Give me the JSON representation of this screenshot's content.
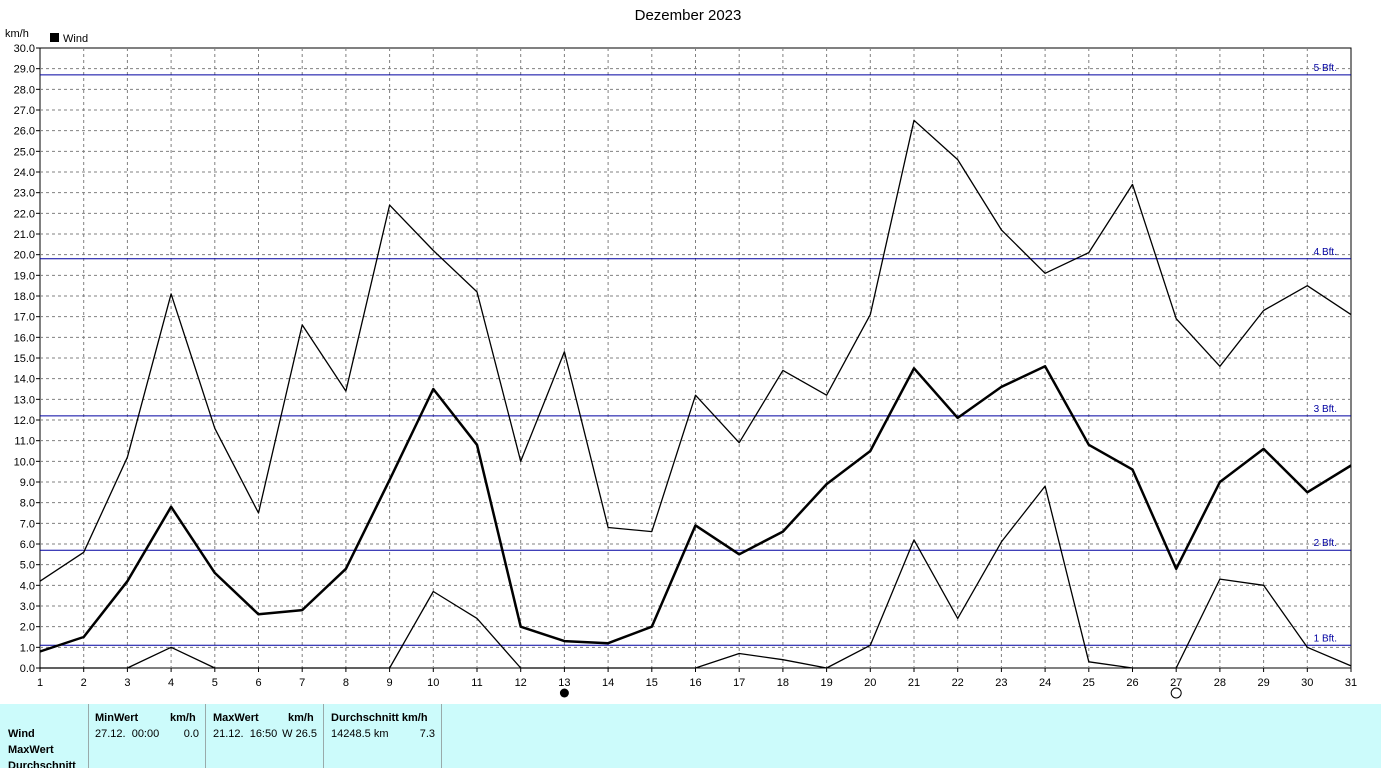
{
  "chart_data": {
    "type": "line",
    "title": "Dezember 2023",
    "ylabel": "km/h",
    "legend": {
      "label": "Wind",
      "placement": "top-left"
    },
    "ylim": [
      0,
      30
    ],
    "xlim": [
      1,
      31
    ],
    "grid": true,
    "y_ticks": [
      "0.0",
      "1.0",
      "2.0",
      "3.0",
      "4.0",
      "5.0",
      "6.0",
      "7.0",
      "8.0",
      "9.0",
      "10.0",
      "11.0",
      "12.0",
      "13.0",
      "14.0",
      "15.0",
      "16.0",
      "17.0",
      "18.0",
      "19.0",
      "20.0",
      "21.0",
      "22.0",
      "23.0",
      "24.0",
      "25.0",
      "26.0",
      "27.0",
      "28.0",
      "29.0",
      "30.0"
    ],
    "x_ticks": [
      "1",
      "2",
      "3",
      "4",
      "5",
      "6",
      "7",
      "8",
      "9",
      "10",
      "11",
      "12",
      "13",
      "14",
      "15",
      "16",
      "17",
      "18",
      "19",
      "20",
      "21",
      "22",
      "23",
      "24",
      "25",
      "26",
      "27",
      "28",
      "29",
      "30",
      "31"
    ],
    "x": [
      1,
      2,
      3,
      4,
      5,
      6,
      7,
      8,
      9,
      10,
      11,
      12,
      13,
      14,
      15,
      16,
      17,
      18,
      19,
      20,
      21,
      22,
      23,
      24,
      25,
      26,
      27,
      28,
      29,
      30,
      31
    ],
    "series": [
      {
        "values": [
          4.2,
          5.6,
          10.2,
          18.1,
          11.6,
          7.5,
          16.6,
          13.4,
          22.4,
          20.2,
          18.2,
          10.0,
          15.3,
          6.8,
          6.6,
          13.2,
          10.9,
          14.4,
          13.2,
          17.1,
          26.5,
          24.6,
          21.2,
          19.1,
          20.1,
          23.4,
          16.9,
          14.6,
          17.3,
          18.5,
          17.1
        ],
        "weight": "thin"
      },
      {
        "values": [
          0.8,
          1.5,
          4.2,
          7.8,
          4.6,
          2.6,
          2.8,
          4.8,
          9.1,
          13.5,
          10.8,
          2.0,
          1.3,
          1.2,
          2.0,
          6.9,
          5.5,
          6.6,
          8.9,
          10.5,
          14.5,
          12.1,
          13.6,
          14.6,
          10.8,
          9.6,
          4.8,
          9.0,
          10.6,
          8.5,
          9.8
        ],
        "weight": "bold"
      },
      {
        "values": [
          0.0,
          0.0,
          0.0,
          1.0,
          0.0,
          0.0,
          0.0,
          0.0,
          0.0,
          3.7,
          2.4,
          0.0,
          0.0,
          0.0,
          0.0,
          0.0,
          0.7,
          0.4,
          0.0,
          1.1,
          6.2,
          2.4,
          6.1,
          8.8,
          0.3,
          0.0,
          0.0,
          4.3,
          4.0,
          1.0,
          0.1
        ],
        "weight": "thin"
      }
    ],
    "reference_lines": [
      {
        "label": "1 Bft.",
        "value": 1.1
      },
      {
        "label": "2 Bft.",
        "value": 5.7
      },
      {
        "label": "3 Bft.",
        "value": 12.2
      },
      {
        "label": "4 Bft.",
        "value": 19.8
      },
      {
        "label": "5 Bft.",
        "value": 28.7
      }
    ],
    "moon_phases": [
      {
        "day": 13,
        "phase": "new"
      },
      {
        "day": 27,
        "phase": "full"
      }
    ]
  },
  "stats": {
    "row_labels": [
      "Wind",
      "MaxWert",
      "Durchschnitt"
    ],
    "min": {
      "header": "MinWert",
      "unit": "km/h",
      "when": "27.12.  00:00",
      "value": "0.0"
    },
    "max": {
      "header": "MaxWert",
      "unit": "km/h",
      "when": "21.12.  16:50",
      "value": "W 26.5"
    },
    "avg": {
      "header": "Durchschnitt km/h",
      "when": "14248.5 km",
      "value": "7.3"
    }
  }
}
